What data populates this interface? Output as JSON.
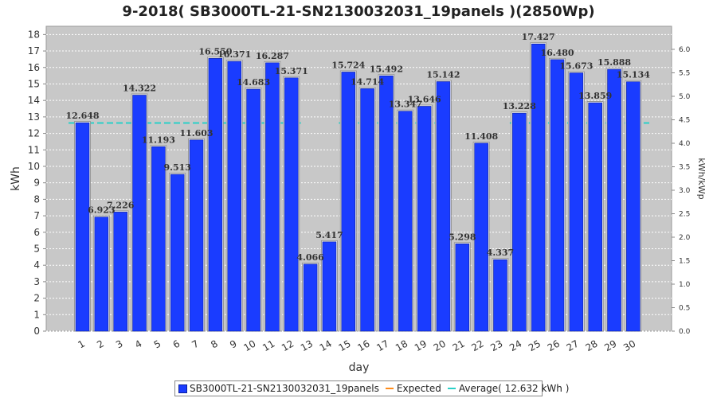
{
  "title": "9-2018( SB3000TL-21-SN2130032031_19panels )(2850Wp)",
  "colors": {
    "bar": "#1a3cff",
    "plot_bg": "#c8c8c8",
    "average": "#2ad0c8",
    "expected": "#ff8c1a"
  },
  "legend": {
    "series_label": "SB3000TL-21-SN2130032031_19panels",
    "expected_label": "Expected",
    "average_label": "Average( 12.632 kWh )"
  },
  "chart_data": {
    "type": "bar",
    "title": "9-2018( SB3000TL-21-SN2130032031_19panels )(2850Wp)",
    "xlabel": "day",
    "ylabel": "kWh",
    "y2label": "kWh/kWp",
    "categories": [
      "1",
      "2",
      "3",
      "4",
      "5",
      "6",
      "7",
      "8",
      "9",
      "10",
      "11",
      "12",
      "13",
      "14",
      "15",
      "16",
      "17",
      "18",
      "19",
      "20",
      "21",
      "22",
      "23",
      "24",
      "25",
      "26",
      "27",
      "28",
      "29",
      "30"
    ],
    "series": [
      {
        "name": "SB3000TL-21-SN2130032031_19panels",
        "values": [
          12.648,
          6.923,
          7.226,
          14.322,
          11.193,
          9.513,
          11.603,
          16.55,
          16.371,
          14.683,
          16.287,
          15.371,
          4.066,
          5.417,
          15.724,
          14.714,
          15.492,
          13.347,
          13.646,
          15.142,
          5.298,
          11.408,
          4.337,
          13.228,
          17.427,
          16.48,
          15.673,
          13.859,
          15.888,
          15.134
        ],
        "labels": [
          "12.648",
          "6.923",
          "7.226",
          "14.322",
          "11.193",
          "9.513",
          "11.603",
          "16.550",
          "16.371",
          "14.683",
          "16.287",
          "15.371",
          "4.066",
          "5.417",
          "15.724",
          "14.714",
          "15.492",
          "13.347",
          "13.646",
          "15.142",
          "5.298",
          "11.408",
          "4.337",
          "13.228",
          "17.427",
          "16.480",
          "15.673",
          "13.859",
          "15.888",
          "15.134"
        ]
      }
    ],
    "average": 12.632,
    "average_missing_days": [
      "13",
      "14",
      "21",
      "22",
      "23"
    ],
    "ylim": [
      0,
      18.5
    ],
    "yticks": [
      0,
      1,
      2,
      3,
      4,
      5,
      6,
      7,
      8,
      9,
      10,
      11,
      12,
      13,
      14,
      15,
      16,
      17,
      18
    ],
    "y2lim": [
      0,
      6.4912
    ],
    "y2ticks": [
      "0.0",
      "0.5",
      "1.0",
      "1.5",
      "2.0",
      "2.5",
      "3.0",
      "3.5",
      "4.0",
      "4.5",
      "5.0",
      "5.5",
      "6.0"
    ],
    "grid": true,
    "legend_position": "bottom"
  }
}
